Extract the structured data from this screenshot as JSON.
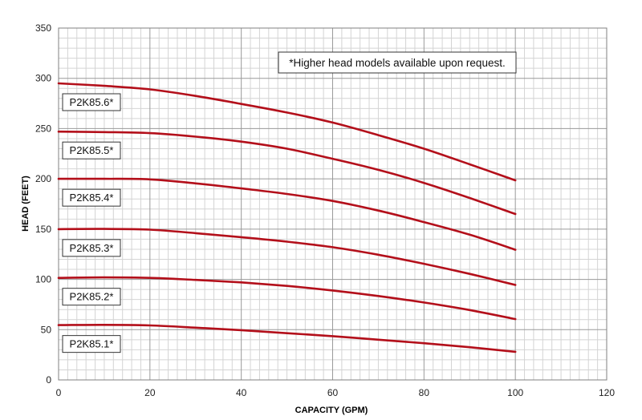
{
  "chart_data": {
    "type": "line",
    "title": "",
    "xlabel": "CAPACITY (GPM)",
    "ylabel": "HEAD (FEET)",
    "xlim": [
      0,
      120
    ],
    "ylim": [
      0,
      350
    ],
    "x_ticks": [
      "0",
      "20",
      "40",
      "60",
      "80",
      "100",
      "120"
    ],
    "y_ticks": [
      "0",
      "50",
      "100",
      "150",
      "200",
      "250",
      "300",
      "350"
    ],
    "grid": true,
    "note": "*Higher head models available upon request.",
    "line_color": "#b30f1a",
    "series": [
      {
        "name": "P2K85.1*",
        "x": [
          0,
          10,
          20,
          30,
          40,
          50,
          60,
          70,
          80,
          90,
          100
        ],
        "y": [
          54.5,
          54.8,
          54.2,
          52,
          49.5,
          46.5,
          43.5,
          40,
          36.5,
          32.5,
          28
        ]
      },
      {
        "name": "P2K85.2*",
        "x": [
          0,
          10,
          20,
          30,
          40,
          50,
          60,
          70,
          80,
          90,
          100
        ],
        "y": [
          101.5,
          102,
          101.5,
          99.5,
          97,
          93.5,
          89,
          83.5,
          77,
          69.5,
          60.5
        ]
      },
      {
        "name": "P2K85.3*",
        "x": [
          0,
          10,
          20,
          30,
          40,
          50,
          60,
          70,
          80,
          90,
          100
        ],
        "y": [
          150,
          150.2,
          149.5,
          146,
          142,
          137.5,
          132,
          124.5,
          115.5,
          105.5,
          94.5
        ]
      },
      {
        "name": "P2K85.4*",
        "x": [
          0,
          10,
          20,
          30,
          40,
          50,
          60,
          70,
          80,
          90,
          100
        ],
        "y": [
          200,
          200,
          199.5,
          195.5,
          190.5,
          185,
          178,
          168.5,
          157,
          144.5,
          129.5
        ]
      },
      {
        "name": "P2K85.5*",
        "x": [
          0,
          10,
          20,
          30,
          40,
          50,
          60,
          70,
          80,
          90,
          100
        ],
        "y": [
          247,
          246.5,
          245.5,
          242,
          237,
          230,
          220,
          209,
          196,
          181,
          165
        ]
      },
      {
        "name": "P2K85.6*",
        "x": [
          0,
          10,
          20,
          30,
          40,
          50,
          60,
          70,
          80,
          90,
          100
        ],
        "y": [
          295,
          292.5,
          289,
          282.5,
          274.5,
          266,
          256,
          243.5,
          230,
          214.5,
          198.5
        ]
      }
    ]
  }
}
